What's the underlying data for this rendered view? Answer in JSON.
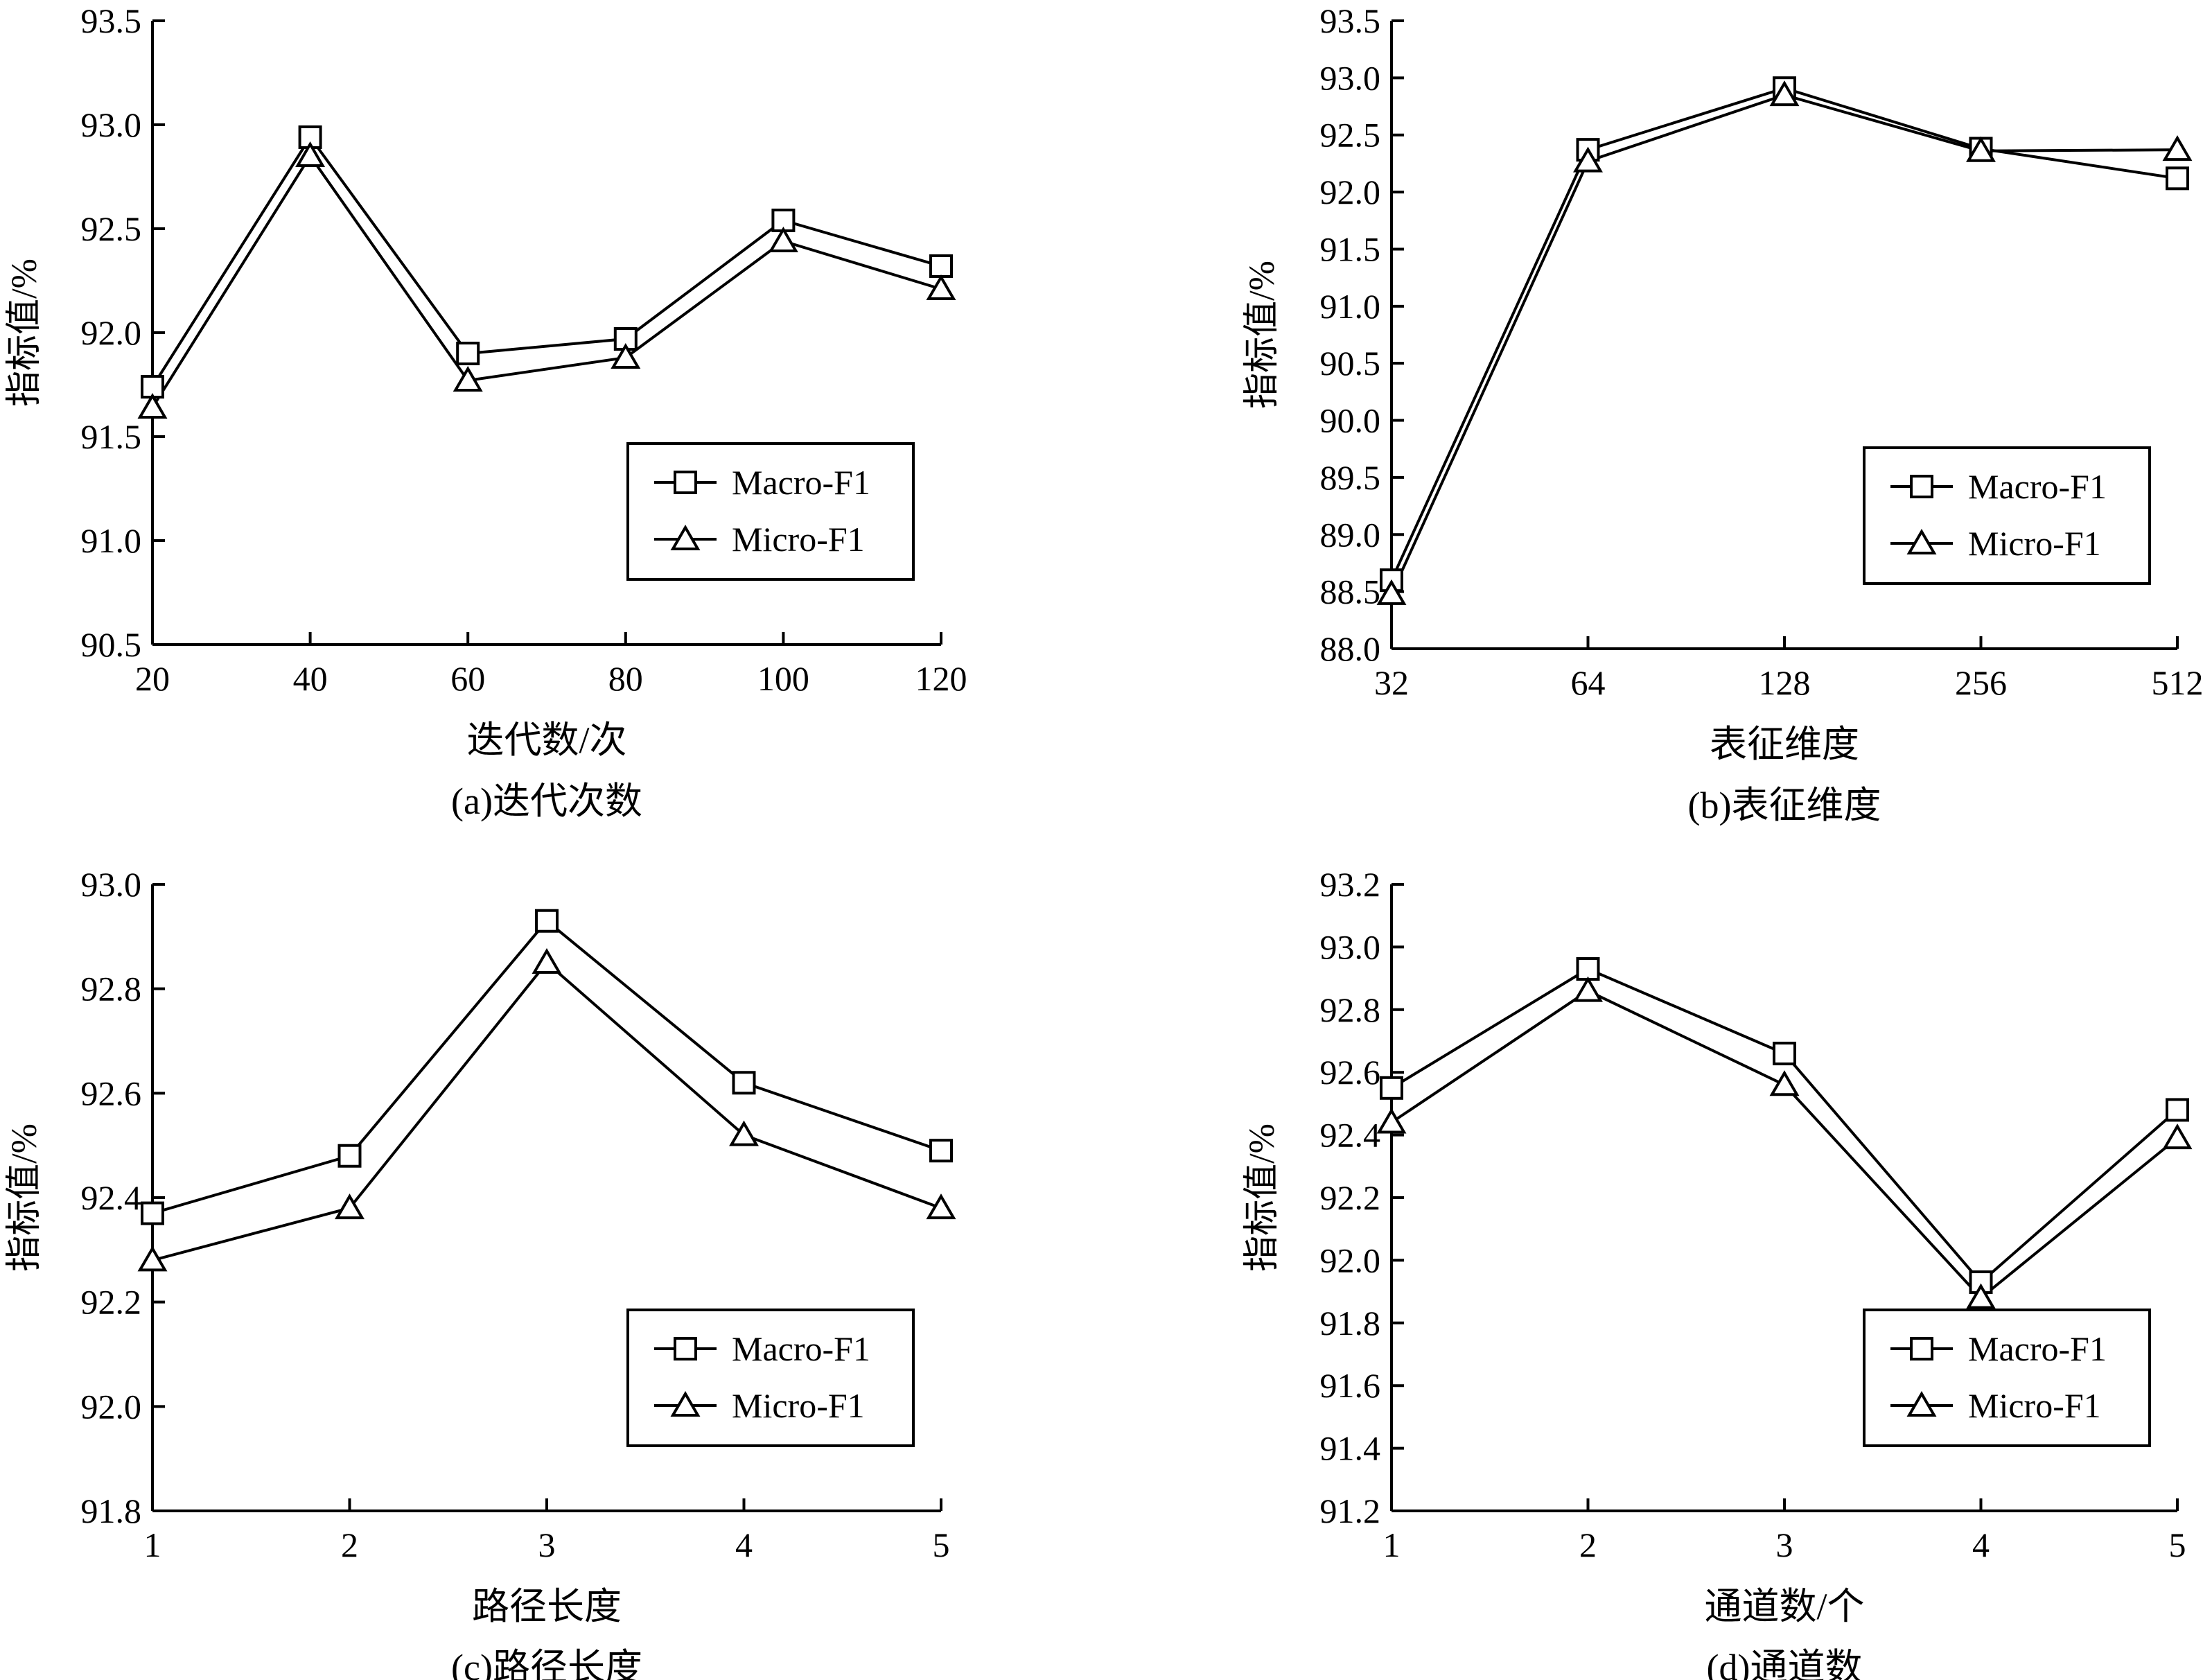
{
  "chart_data": [
    {
      "type": "line",
      "caption": "(a)迭代次数",
      "xlabel": "迭代数/次",
      "ylabel": "指标值/%",
      "x": [
        20,
        40,
        60,
        80,
        100,
        120
      ],
      "xticks": [
        20,
        40,
        60,
        80,
        100,
        120
      ],
      "xlim": [
        20,
        120
      ],
      "ylim": [
        90.5,
        93.5
      ],
      "yticks": [
        "90.5",
        "91.0",
        "91.5",
        "92.0",
        "92.5",
        "93.0",
        "93.5"
      ],
      "legend_position": "bottom-right",
      "series": [
        {
          "name": "Macro-F1",
          "marker": "square",
          "values": [
            91.74,
            92.94,
            91.9,
            91.97,
            92.54,
            92.32
          ]
        },
        {
          "name": "Micro-F1",
          "marker": "triangle",
          "values": [
            91.64,
            92.85,
            91.77,
            91.88,
            92.44,
            92.21
          ]
        }
      ]
    },
    {
      "type": "line",
      "caption": "(b)表征维度",
      "xlabel": "表征维度",
      "ylabel": "指标值/%",
      "x": [
        "32",
        "64",
        "128",
        "256",
        "512"
      ],
      "xticks": [
        "32",
        "64",
        "128",
        "256",
        "512"
      ],
      "ylim": [
        88.0,
        93.5
      ],
      "yticks": [
        "88.0",
        "88.5",
        "89.0",
        "89.5",
        "90.0",
        "90.5",
        "91.0",
        "91.5",
        "92.0",
        "92.5",
        "93.0",
        "93.5"
      ],
      "legend_position": "bottom-right",
      "series": [
        {
          "name": "Macro-F1",
          "marker": "square",
          "values": [
            88.6,
            92.37,
            92.91,
            92.38,
            92.12
          ]
        },
        {
          "name": "Micro-F1",
          "marker": "triangle",
          "values": [
            88.48,
            92.27,
            92.85,
            92.36,
            92.37
          ]
        }
      ]
    },
    {
      "type": "line",
      "caption": "(c)路径长度",
      "xlabel": "路径长度",
      "ylabel": "指标值/%",
      "x": [
        1,
        2,
        3,
        4,
        5
      ],
      "xticks": [
        1,
        2,
        3,
        4,
        5
      ],
      "xlim": [
        1,
        5
      ],
      "ylim": [
        91.8,
        93.0
      ],
      "yticks": [
        "91.8",
        "92.0",
        "92.2",
        "92.4",
        "92.6",
        "92.8",
        "93.0"
      ],
      "legend_position": "bottom-right",
      "series": [
        {
          "name": "Macro-F1",
          "marker": "square",
          "values": [
            92.37,
            92.48,
            92.93,
            92.62,
            92.49
          ]
        },
        {
          "name": "Micro-F1",
          "marker": "triangle",
          "values": [
            92.28,
            92.38,
            92.85,
            92.52,
            92.38
          ]
        }
      ]
    },
    {
      "type": "line",
      "caption": "(d)通道数",
      "xlabel": "通道数/个",
      "ylabel": "指标值/%",
      "x": [
        1,
        2,
        3,
        4,
        5
      ],
      "xticks": [
        1,
        2,
        3,
        4,
        5
      ],
      "xlim": [
        1,
        5
      ],
      "ylim": [
        91.2,
        93.2
      ],
      "yticks": [
        "91.2",
        "91.4",
        "91.6",
        "91.8",
        "92.0",
        "92.2",
        "92.4",
        "92.6",
        "92.8",
        "93.0",
        "93.2"
      ],
      "legend_position": "bottom-right",
      "series": [
        {
          "name": "Macro-F1",
          "marker": "square",
          "values": [
            92.55,
            92.93,
            92.66,
            91.93,
            92.48
          ]
        },
        {
          "name": "Micro-F1",
          "marker": "triangle",
          "values": [
            92.44,
            92.86,
            92.56,
            91.88,
            92.39
          ]
        }
      ]
    }
  ]
}
